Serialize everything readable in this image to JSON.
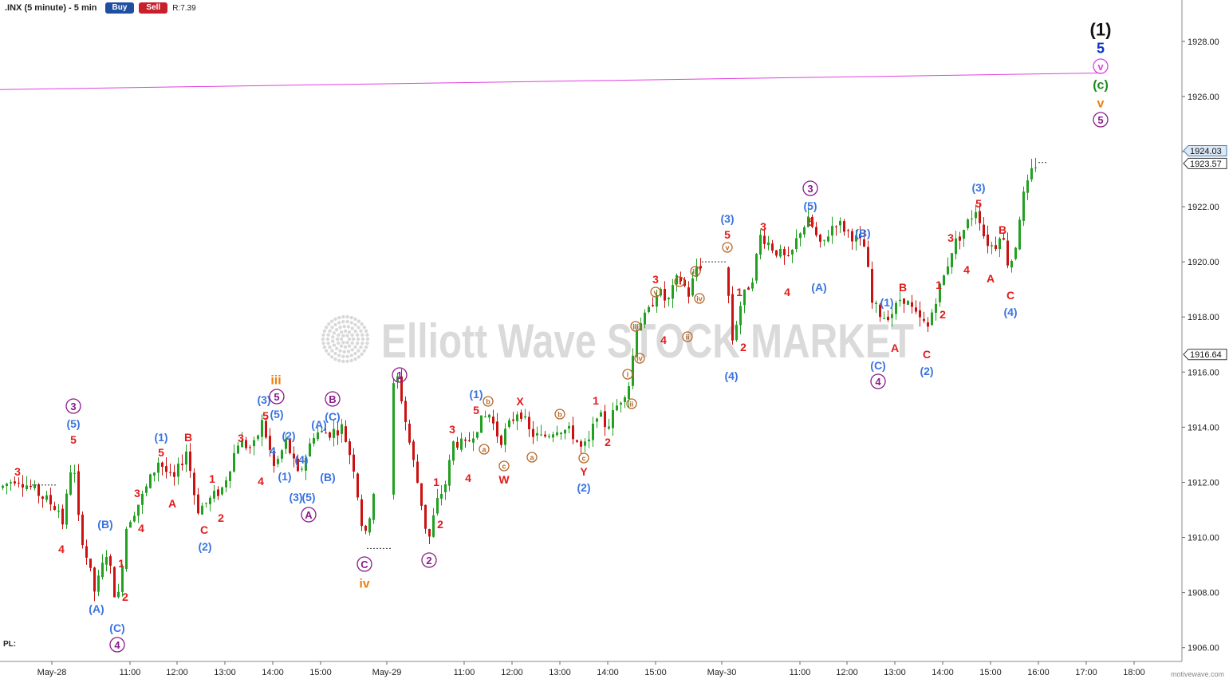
{
  "header": {
    "title": ".INX (5 minute) - 5 min",
    "buy_label": "Buy",
    "sell_label": "Sell",
    "range_label": "R:7.39"
  },
  "footer": {
    "pl_label": "PL:",
    "watermark": "motivewave.com"
  },
  "watermark_text": "Elliott Wave STOCK MARKET",
  "colors": {
    "up": "#22a022",
    "down": "#cc1111",
    "red": "#e21b1b",
    "blue": "#3a74e0",
    "purple": "#8a1c8a",
    "orange": "#ee7f0d",
    "green": "#1a8a1a",
    "brown": "#b5682a",
    "navy": "#1133cc",
    "magenta": "#e040e0",
    "black": "#111111"
  },
  "chart_data": {
    "type": "candlestick",
    "y_ticks": [
      "1906.00",
      "1908.00",
      "1910.00",
      "1912.00",
      "1914.00",
      "1916.00",
      "1918.00",
      "1920.00",
      "1922.00",
      "1924.00",
      "1926.00",
      "1928.00"
    ],
    "ylim": [
      1905.5,
      1929.5
    ],
    "price_labels": [
      {
        "value": "1924.03",
        "y": 1924.03,
        "style": "blue"
      },
      {
        "value": "1923.57",
        "y": 1923.57,
        "style": "dark"
      },
      {
        "value": "1916.64",
        "y": 1916.64,
        "style": "dark"
      }
    ],
    "x_labels": [
      {
        "t": "May-28",
        "x": 65
      },
      {
        "t": "11:00",
        "x": 163
      },
      {
        "t": "12:00",
        "x": 222
      },
      {
        "t": "13:00",
        "x": 282
      },
      {
        "t": "14:00",
        "x": 342
      },
      {
        "t": "15:00",
        "x": 402
      },
      {
        "t": "May-29",
        "x": 485
      },
      {
        "t": "11:00",
        "x": 582
      },
      {
        "t": "12:00",
        "x": 642
      },
      {
        "t": "13:00",
        "x": 702
      },
      {
        "t": "14:00",
        "x": 762
      },
      {
        "t": "15:00",
        "x": 822
      },
      {
        "t": "May-30",
        "x": 905
      },
      {
        "t": "11:00",
        "x": 1003
      },
      {
        "t": "12:00",
        "x": 1062
      },
      {
        "t": "13:00",
        "x": 1122
      },
      {
        "t": "14:00",
        "x": 1182
      },
      {
        "t": "15:00",
        "x": 1242
      },
      {
        "t": "16:00",
        "x": 1302
      },
      {
        "t": "17:00",
        "x": 1362
      },
      {
        "t": "18:00",
        "x": 1422
      }
    ],
    "trendline": {
      "color": "magenta",
      "y0": 1926.25,
      "y1": 1926.85
    },
    "path_points": [
      [
        2,
        1911.8
      ],
      [
        22,
        1912.2
      ],
      [
        30,
        1912.0
      ],
      [
        40,
        1911.8
      ],
      [
        75,
        1911.0
      ],
      [
        80,
        1910.5
      ],
      [
        92,
        1913.0
      ],
      [
        100,
        1910.5
      ],
      [
        120,
        1908.0
      ],
      [
        135,
        1909.5
      ],
      [
        148,
        1907.5
      ],
      [
        160,
        1910.5
      ],
      [
        170,
        1911.0
      ],
      [
        180,
        1911.5
      ],
      [
        200,
        1912.8
      ],
      [
        218,
        1912.0
      ],
      [
        235,
        1913.2
      ],
      [
        248,
        1911.0
      ],
      [
        262,
        1911.3
      ],
      [
        280,
        1911.8
      ],
      [
        300,
        1913.5
      ],
      [
        318,
        1913.2
      ],
      [
        330,
        1914.2
      ],
      [
        345,
        1912.5
      ],
      [
        360,
        1913.5
      ],
      [
        375,
        1912.2
      ],
      [
        395,
        1913.8
      ],
      [
        415,
        1913.8
      ],
      [
        430,
        1914.0
      ],
      [
        445,
        1912.5
      ],
      [
        458,
        1909.8
      ],
      [
        492,
        1915.3
      ],
      [
        500,
        1915.8
      ],
      [
        512,
        1913.8
      ],
      [
        528,
        1911.5
      ],
      [
        538,
        1909.8
      ],
      [
        548,
        1911.2
      ],
      [
        560,
        1912.0
      ],
      [
        570,
        1913.5
      ],
      [
        585,
        1913.3
      ],
      [
        598,
        1914.0
      ],
      [
        614,
        1914.5
      ],
      [
        628,
        1913.5
      ],
      [
        652,
        1914.7
      ],
      [
        665,
        1913.8
      ],
      [
        680,
        1913.6
      ],
      [
        700,
        1914.0
      ],
      [
        718,
        1913.8
      ],
      [
        730,
        1913.2
      ],
      [
        742,
        1913.5
      ],
      [
        748,
        1914.6
      ],
      [
        762,
        1914.0
      ],
      [
        775,
        1914.8
      ],
      [
        790,
        1915.6
      ],
      [
        800,
        1917.8
      ],
      [
        812,
        1918.0
      ],
      [
        825,
        1919.0
      ],
      [
        838,
        1918.5
      ],
      [
        852,
        1919.5
      ],
      [
        865,
        1918.8
      ],
      [
        876,
        1920.0
      ],
      [
        895,
        1919.5
      ],
      [
        912,
        1920.0
      ],
      [
        918,
        1917.0
      ],
      [
        930,
        1918.5
      ],
      [
        945,
        1919.5
      ],
      [
        955,
        1921.0
      ],
      [
        970,
        1920.5
      ],
      [
        990,
        1920.0
      ],
      [
        1005,
        1921.2
      ],
      [
        1016,
        1921.5
      ],
      [
        1030,
        1920.5
      ],
      [
        1048,
        1921.5
      ],
      [
        1068,
        1921.0
      ],
      [
        1086,
        1920.5
      ],
      [
        1094,
        1918.5
      ],
      [
        1108,
        1918.0
      ],
      [
        1122,
        1918.2
      ],
      [
        1132,
        1918.8
      ],
      [
        1150,
        1918.0
      ],
      [
        1165,
        1917.6
      ],
      [
        1172,
        1918.5
      ],
      [
        1185,
        1919.5
      ],
      [
        1195,
        1920.5
      ],
      [
        1210,
        1921.2
      ],
      [
        1226,
        1922.0
      ],
      [
        1236,
        1920.8
      ],
      [
        1248,
        1920.5
      ],
      [
        1256,
        1921.2
      ],
      [
        1266,
        1919.8
      ],
      [
        1274,
        1920.5
      ],
      [
        1282,
        1922.2
      ],
      [
        1290,
        1922.8
      ],
      [
        1298,
        1923.6
      ],
      [
        1304,
        1923.4
      ]
    ],
    "wave_labels": [
      {
        "t": "(1)",
        "x": 1380,
        "y": 37,
        "c": "black",
        "s": 22
      },
      {
        "t": "5",
        "x": 1380,
        "y": 60,
        "c": "navy",
        "s": 18
      },
      {
        "t": "v",
        "x": 1380,
        "y": 83,
        "c": "magenta",
        "s": 15,
        "circ": 1
      },
      {
        "t": "(c)",
        "x": 1380,
        "y": 106,
        "c": "green",
        "s": 16
      },
      {
        "t": "v",
        "x": 1380,
        "y": 129,
        "c": "orange",
        "s": 16
      },
      {
        "t": "5",
        "x": 1380,
        "y": 150,
        "c": "purple",
        "s": 15,
        "circ": 1
      },
      {
        "t": "iii",
        "x": 346,
        "y": 476,
        "c": "orange",
        "s": 16
      },
      {
        "t": "iv",
        "x": 457,
        "y": 731,
        "c": "orange",
        "s": 16
      },
      {
        "t": "3",
        "x": 92,
        "y": 509,
        "c": "purple",
        "s": 14,
        "circ": 1
      },
      {
        "t": "(5)",
        "x": 92,
        "y": 531,
        "c": "blue",
        "s": 14
      },
      {
        "t": "5",
        "x": 92,
        "y": 551,
        "c": "red",
        "s": 14
      },
      {
        "t": "3",
        "x": 22,
        "y": 591,
        "c": "red",
        "s": 14
      },
      {
        "t": "4",
        "x": 77,
        "y": 688,
        "c": "red",
        "s": 14
      },
      {
        "t": "(B)",
        "x": 132,
        "y": 657,
        "c": "blue",
        "s": 14
      },
      {
        "t": "(A)",
        "x": 121,
        "y": 763,
        "c": "blue",
        "s": 14
      },
      {
        "t": "(C)",
        "x": 147,
        "y": 787,
        "c": "blue",
        "s": 14
      },
      {
        "t": "4",
        "x": 147,
        "y": 808,
        "c": "purple",
        "s": 14,
        "circ": 1
      },
      {
        "t": "1",
        "x": 152,
        "y": 706,
        "c": "red",
        "s": 14
      },
      {
        "t": "2",
        "x": 157,
        "y": 748,
        "c": "red",
        "s": 14
      },
      {
        "t": "3",
        "x": 172,
        "y": 618,
        "c": "red",
        "s": 14
      },
      {
        "t": "4",
        "x": 177,
        "y": 662,
        "c": "red",
        "s": 14
      },
      {
        "t": "(1)",
        "x": 202,
        "y": 548,
        "c": "blue",
        "s": 14
      },
      {
        "t": "5",
        "x": 202,
        "y": 567,
        "c": "red",
        "s": 14
      },
      {
        "t": "A",
        "x": 216,
        "y": 631,
        "c": "red",
        "s": 14
      },
      {
        "t": "B",
        "x": 236,
        "y": 548,
        "c": "red",
        "s": 14
      },
      {
        "t": "C",
        "x": 256,
        "y": 664,
        "c": "red",
        "s": 14
      },
      {
        "t": "(2)",
        "x": 257,
        "y": 685,
        "c": "blue",
        "s": 14
      },
      {
        "t": "1",
        "x": 266,
        "y": 600,
        "c": "red",
        "s": 14
      },
      {
        "t": "2",
        "x": 277,
        "y": 649,
        "c": "red",
        "s": 14
      },
      {
        "t": "3",
        "x": 302,
        "y": 549,
        "c": "red",
        "s": 14
      },
      {
        "t": "4",
        "x": 327,
        "y": 603,
        "c": "red",
        "s": 14
      },
      {
        "t": "(3)",
        "x": 331,
        "y": 501,
        "c": "blue",
        "s": 14
      },
      {
        "t": "5",
        "x": 347,
        "y": 497,
        "c": "purple",
        "s": 14,
        "circ": 1
      },
      {
        "t": "5",
        "x": 333,
        "y": 521,
        "c": "red",
        "s": 14
      },
      {
        "t": "(5)",
        "x": 347,
        "y": 519,
        "c": "blue",
        "s": 14
      },
      {
        "t": "(2)",
        "x": 362,
        "y": 546,
        "c": "blue",
        "s": 14
      },
      {
        "t": "4",
        "x": 342,
        "y": 565,
        "c": "blue",
        "s": 14
      },
      {
        "t": "(4)",
        "x": 378,
        "y": 576,
        "c": "blue",
        "s": 14
      },
      {
        "t": "(1)",
        "x": 357,
        "y": 597,
        "c": "blue",
        "s": 14
      },
      {
        "t": "(3)",
        "x": 371,
        "y": 623,
        "c": "blue",
        "s": 14
      },
      {
        "t": "(5)",
        "x": 387,
        "y": 623,
        "c": "blue",
        "s": 14
      },
      {
        "t": "A",
        "x": 387,
        "y": 645,
        "c": "purple",
        "s": 14,
        "circ": 1
      },
      {
        "t": "(A)",
        "x": 400,
        "y": 532,
        "c": "blue",
        "s": 14
      },
      {
        "t": "B",
        "x": 417,
        "y": 500,
        "c": "purple",
        "s": 14,
        "circ": 1
      },
      {
        "t": "(C)",
        "x": 417,
        "y": 522,
        "c": "blue",
        "s": 14
      },
      {
        "t": "(B)",
        "x": 411,
        "y": 598,
        "c": "blue",
        "s": 14
      },
      {
        "t": "C",
        "x": 457,
        "y": 707,
        "c": "purple",
        "s": 14,
        "circ": 1
      },
      {
        "t": "1",
        "x": 501,
        "y": 470,
        "c": "purple",
        "s": 14,
        "circ": 1
      },
      {
        "t": "2",
        "x": 538,
        "y": 702,
        "c": "purple",
        "s": 14,
        "circ": 1
      },
      {
        "t": "1",
        "x": 547,
        "y": 604,
        "c": "red",
        "s": 14
      },
      {
        "t": "2",
        "x": 552,
        "y": 657,
        "c": "red",
        "s": 14
      },
      {
        "t": "3",
        "x": 567,
        "y": 538,
        "c": "red",
        "s": 14
      },
      {
        "t": "4",
        "x": 587,
        "y": 599,
        "c": "red",
        "s": 14
      },
      {
        "t": "(1)",
        "x": 597,
        "y": 494,
        "c": "blue",
        "s": 14
      },
      {
        "t": "5",
        "x": 597,
        "y": 514,
        "c": "red",
        "s": 14
      },
      {
        "t": "b",
        "x": 612,
        "y": 503,
        "c": "brown",
        "s": 10,
        "circ": 1
      },
      {
        "t": "a",
        "x": 607,
        "y": 563,
        "c": "brown",
        "s": 10,
        "circ": 1
      },
      {
        "t": "c",
        "x": 632,
        "y": 584,
        "c": "brown",
        "s": 10,
        "circ": 1
      },
      {
        "t": "W",
        "x": 632,
        "y": 601,
        "c": "red",
        "s": 14
      },
      {
        "t": "X",
        "x": 652,
        "y": 503,
        "c": "red",
        "s": 14
      },
      {
        "t": "a",
        "x": 667,
        "y": 573,
        "c": "brown",
        "s": 10,
        "circ": 1
      },
      {
        "t": "b",
        "x": 702,
        "y": 519,
        "c": "brown",
        "s": 10,
        "circ": 1
      },
      {
        "t": "c",
        "x": 732,
        "y": 574,
        "c": "brown",
        "s": 10,
        "circ": 1
      },
      {
        "t": "Y",
        "x": 732,
        "y": 591,
        "c": "red",
        "s": 14
      },
      {
        "t": "(2)",
        "x": 732,
        "y": 611,
        "c": "blue",
        "s": 14
      },
      {
        "t": "1",
        "x": 747,
        "y": 502,
        "c": "red",
        "s": 14
      },
      {
        "t": "2",
        "x": 762,
        "y": 554,
        "c": "red",
        "s": 14
      },
      {
        "t": "i",
        "x": 787,
        "y": 469,
        "c": "brown",
        "s": 10,
        "circ": 1
      },
      {
        "t": "ii",
        "x": 792,
        "y": 506,
        "c": "brown",
        "s": 10,
        "circ": 1
      },
      {
        "t": "iii",
        "x": 797,
        "y": 409,
        "c": "brown",
        "s": 10,
        "circ": 1
      },
      {
        "t": "iv",
        "x": 802,
        "y": 449,
        "c": "brown",
        "s": 10,
        "circ": 1
      },
      {
        "t": "3",
        "x": 822,
        "y": 350,
        "c": "red",
        "s": 14
      },
      {
        "t": "v",
        "x": 822,
        "y": 366,
        "c": "brown",
        "s": 10,
        "circ": 1
      },
      {
        "t": "4",
        "x": 832,
        "y": 426,
        "c": "red",
        "s": 14
      },
      {
        "t": "i",
        "x": 852,
        "y": 353,
        "c": "brown",
        "s": 10,
        "circ": 1
      },
      {
        "t": "ii",
        "x": 862,
        "y": 422,
        "c": "brown",
        "s": 10,
        "circ": 1
      },
      {
        "t": "iii",
        "x": 872,
        "y": 340,
        "c": "brown",
        "s": 10,
        "circ": 1
      },
      {
        "t": "iv",
        "x": 877,
        "y": 374,
        "c": "brown",
        "s": 10,
        "circ": 1
      },
      {
        "t": "(3)",
        "x": 912,
        "y": 274,
        "c": "blue",
        "s": 14
      },
      {
        "t": "5",
        "x": 912,
        "y": 294,
        "c": "red",
        "s": 14
      },
      {
        "t": "v",
        "x": 912,
        "y": 310,
        "c": "brown",
        "s": 10,
        "circ": 1
      },
      {
        "t": "(4)",
        "x": 917,
        "y": 471,
        "c": "blue",
        "s": 14
      },
      {
        "t": "1",
        "x": 927,
        "y": 366,
        "c": "red",
        "s": 14
      },
      {
        "t": "2",
        "x": 932,
        "y": 435,
        "c": "red",
        "s": 14
      },
      {
        "t": "3",
        "x": 957,
        "y": 284,
        "c": "red",
        "s": 14
      },
      {
        "t": "4",
        "x": 987,
        "y": 366,
        "c": "red",
        "s": 14
      },
      {
        "t": "3",
        "x": 1016,
        "y": 236,
        "c": "purple",
        "s": 14,
        "circ": 1
      },
      {
        "t": "(5)",
        "x": 1016,
        "y": 258,
        "c": "blue",
        "s": 14
      },
      {
        "t": "5",
        "x": 1017,
        "y": 278,
        "c": "red",
        "s": 14
      },
      {
        "t": "(A)",
        "x": 1027,
        "y": 360,
        "c": "blue",
        "s": 14
      },
      {
        "t": "(B)",
        "x": 1082,
        "y": 292,
        "c": "blue",
        "s": 14
      },
      {
        "t": "(1)",
        "x": 1112,
        "y": 379,
        "c": "blue",
        "s": 14
      },
      {
        "t": "B",
        "x": 1132,
        "y": 360,
        "c": "red",
        "s": 14
      },
      {
        "t": "A",
        "x": 1122,
        "y": 436,
        "c": "red",
        "s": 14
      },
      {
        "t": "(C)",
        "x": 1101,
        "y": 458,
        "c": "blue",
        "s": 14
      },
      {
        "t": "4",
        "x": 1101,
        "y": 478,
        "c": "purple",
        "s": 14,
        "circ": 1
      },
      {
        "t": "C",
        "x": 1162,
        "y": 444,
        "c": "red",
        "s": 14
      },
      {
        "t": "(2)",
        "x": 1162,
        "y": 465,
        "c": "blue",
        "s": 14
      },
      {
        "t": "1",
        "x": 1177,
        "y": 357,
        "c": "red",
        "s": 14
      },
      {
        "t": "2",
        "x": 1182,
        "y": 394,
        "c": "red",
        "s": 14
      },
      {
        "t": "3",
        "x": 1192,
        "y": 298,
        "c": "red",
        "s": 14
      },
      {
        "t": "4",
        "x": 1212,
        "y": 338,
        "c": "red",
        "s": 14
      },
      {
        "t": "(3)",
        "x": 1227,
        "y": 235,
        "c": "blue",
        "s": 14
      },
      {
        "t": "5",
        "x": 1227,
        "y": 255,
        "c": "red",
        "s": 14
      },
      {
        "t": "B",
        "x": 1257,
        "y": 288,
        "c": "red",
        "s": 14
      },
      {
        "t": "A",
        "x": 1242,
        "y": 349,
        "c": "red",
        "s": 14
      },
      {
        "t": "C",
        "x": 1267,
        "y": 370,
        "c": "red",
        "s": 14
      },
      {
        "t": "(4)",
        "x": 1267,
        "y": 391,
        "c": "blue",
        "s": 14
      }
    ]
  }
}
